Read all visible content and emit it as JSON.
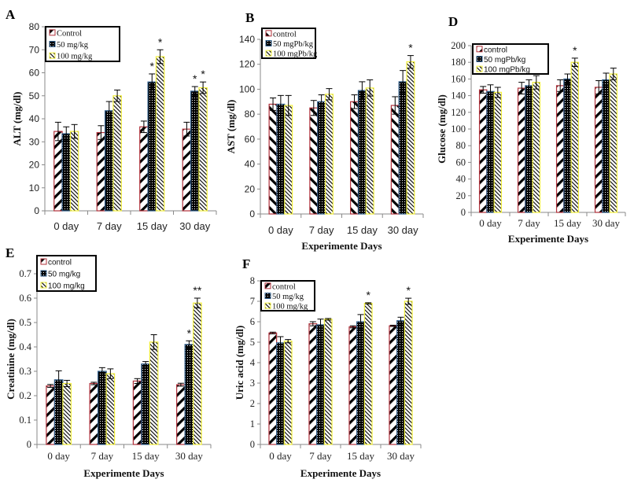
{
  "figure": {
    "categories": [
      "0 day",
      "7 day",
      "15 day",
      "30 day"
    ],
    "xlabel": "Experimente Days",
    "colors": {
      "control_border": "#b0303a",
      "mid_border": "#2f5d8a",
      "high_border": "#f2ef3a",
      "pattern": "#000000"
    }
  },
  "chart_data": [
    {
      "panel": "A",
      "type": "bar",
      "ylabel": "ALT (mg/dl)",
      "xlabel": "",
      "ylim": [
        0,
        80
      ],
      "yticks": [
        0,
        10,
        20,
        30,
        40,
        50,
        60,
        70,
        80
      ],
      "categories": [
        "0 day",
        "7 day",
        "15 day",
        "30 day"
      ],
      "legend": [
        "Control",
        "50 mg/kg",
        "100 mg/kg"
      ],
      "legend_position": "top-left",
      "series": [
        {
          "name": "Control",
          "values": [
            34.5,
            34,
            36.5,
            35.5
          ],
          "errors": [
            4,
            3,
            2.5,
            3
          ],
          "stars": [
            "",
            "",
            "",
            ""
          ]
        },
        {
          "name": "50 mg/kg",
          "values": [
            33.5,
            43.5,
            56,
            52
          ],
          "errors": [
            3,
            4,
            3.5,
            2
          ],
          "stars": [
            "",
            "",
            "*",
            "*"
          ]
        },
        {
          "name": "100 mg/kg",
          "values": [
            34.5,
            50,
            67,
            53.5
          ],
          "errors": [
            3,
            2.5,
            3,
            2.5
          ],
          "stars": [
            "",
            "",
            "*",
            "*"
          ]
        }
      ]
    },
    {
      "panel": "B",
      "type": "bar",
      "ylabel": "AST (mg/dl)",
      "xlabel": "Experimente Days",
      "ylim": [
        0,
        140
      ],
      "yticks": [
        0,
        20,
        40,
        60,
        80,
        100,
        120,
        140
      ],
      "categories": [
        "0 day",
        "7 day",
        "15 day",
        "30 day"
      ],
      "legend": [
        "control",
        "50 mgPb/kg",
        "100 mgPb/kg"
      ],
      "legend_position": "top-left",
      "series": [
        {
          "name": "control",
          "values": [
            88,
            85,
            90,
            87
          ],
          "errors": [
            5,
            6,
            5.5,
            7
          ],
          "stars": [
            "",
            "",
            "",
            ""
          ]
        },
        {
          "name": "50 mgPb/kg",
          "values": [
            88,
            90,
            99,
            106
          ],
          "errors": [
            7,
            5.5,
            7,
            9
          ],
          "stars": [
            "",
            "",
            "",
            ""
          ]
        },
        {
          "name": "100 mgPb/kg",
          "values": [
            87,
            96,
            101,
            122
          ],
          "errors": [
            8,
            4.5,
            6.5,
            5
          ],
          "stars": [
            "",
            "",
            "",
            "*"
          ]
        }
      ]
    },
    {
      "panel": "D",
      "type": "bar",
      "ylabel": "Glucose (mg/dl)",
      "xlabel": "Experimente Days",
      "ylim": [
        0,
        200
      ],
      "yticks": [
        0,
        20,
        40,
        60,
        80,
        100,
        120,
        140,
        160,
        180,
        200
      ],
      "categories": [
        "0 day",
        "7 day",
        "15 day",
        "30 day"
      ],
      "legend": [
        "control",
        "50 mgPb/kg",
        "100 mgPb/kg"
      ],
      "legend_position": "top-left",
      "series": [
        {
          "name": "control",
          "values": [
            147,
            149,
            152,
            150
          ],
          "errors": [
            4,
            7,
            7,
            8
          ],
          "stars": [
            "",
            "",
            "",
            ""
          ]
        },
        {
          "name": "50 mgPb/kg",
          "values": [
            145,
            152,
            160,
            159
          ],
          "errors": [
            8,
            7,
            6,
            8
          ],
          "stars": [
            "",
            "",
            "",
            ""
          ]
        },
        {
          "name": "100 mgPb/kg",
          "values": [
            144,
            156,
            180,
            166
          ],
          "errors": [
            6,
            8,
            5,
            7
          ],
          "stars": [
            "",
            "",
            "*",
            ""
          ]
        }
      ]
    },
    {
      "panel": "E",
      "type": "bar",
      "ylabel": "Creatinine (mg/dl)",
      "xlabel": "Experimente Days",
      "ylim": [
        0,
        0.7
      ],
      "yticks": [
        0,
        0.1,
        0.2,
        0.3,
        0.4,
        0.5,
        0.6,
        0.7
      ],
      "categories": [
        "0 day",
        "7 day",
        "15 day",
        "30 day"
      ],
      "legend": [
        "control",
        "50 mg/kg",
        "100 mg/kg"
      ],
      "legend_position": "top-left",
      "series": [
        {
          "name": "control",
          "values": [
            0.24,
            0.25,
            0.26,
            0.245
          ],
          "errors": [
            0.006,
            0.005,
            0.01,
            0.006
          ],
          "stars": [
            "",
            "",
            "",
            ""
          ]
        },
        {
          "name": "50 mg/kg",
          "values": [
            0.265,
            0.3,
            0.33,
            0.41
          ],
          "errors": [
            0.037,
            0.015,
            0.01,
            0.015
          ],
          "stars": [
            "",
            "",
            "",
            "*"
          ]
        },
        {
          "name": "100 mg/kg",
          "values": [
            0.25,
            0.29,
            0.42,
            0.58
          ],
          "errors": [
            0.013,
            0.02,
            0.03,
            0.02
          ],
          "stars": [
            "",
            "",
            "",
            "**"
          ]
        }
      ]
    },
    {
      "panel": "F",
      "type": "bar",
      "ylabel": "Uric acid (mg/dl)",
      "xlabel": "Experimente Days",
      "ylim": [
        0,
        8
      ],
      "yticks": [
        0,
        1,
        2,
        3,
        4,
        5,
        6,
        7,
        8
      ],
      "categories": [
        "0 day",
        "7 day",
        "15 day",
        "30 day"
      ],
      "legend": [
        "control",
        "50 mg/kg",
        "100 mg/kg"
      ],
      "legend_position": "top-left",
      "series": [
        {
          "name": "control",
          "values": [
            5.45,
            5.9,
            5.75,
            5.8
          ],
          "errors": [
            0.04,
            0.1,
            0.05,
            0.03
          ],
          "stars": [
            "",
            "",
            "",
            ""
          ]
        },
        {
          "name": "50 mg/kg",
          "values": [
            4.97,
            5.85,
            6.0,
            6.05
          ],
          "errors": [
            0.3,
            0.28,
            0.35,
            0.17
          ],
          "stars": [
            "",
            "",
            "",
            ""
          ]
        },
        {
          "name": "100 mg/kg",
          "values": [
            5.05,
            6.12,
            6.9,
            7.0
          ],
          "errors": [
            0.08,
            0.04,
            0.03,
            0.15
          ],
          "stars": [
            "",
            "",
            "*",
            "*"
          ]
        }
      ]
    }
  ]
}
